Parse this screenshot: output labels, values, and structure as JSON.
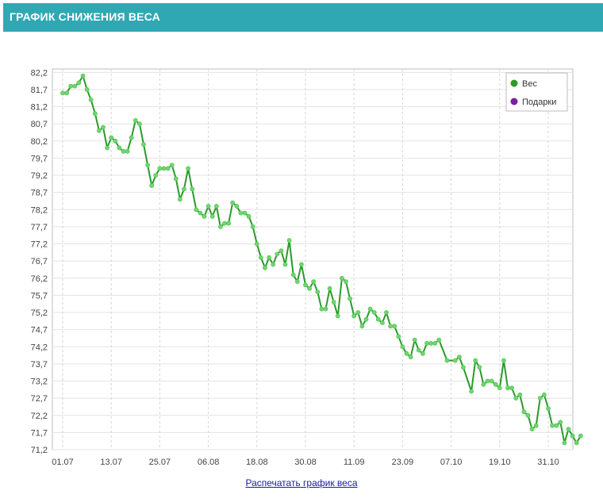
{
  "header": {
    "title": "ГРАФИК СНИЖЕНИЯ ВЕСА"
  },
  "footer": {
    "print_link": "Распечатать график веса"
  },
  "colors": {
    "header_bg": "#2fa8b3",
    "series_line": "#2b9a2b",
    "series_point": "#6fd66f",
    "gifts": "#7b1fa2"
  },
  "chart_data": {
    "type": "line",
    "title": "",
    "xlabel": "",
    "ylabel": "",
    "ylim": [
      71.2,
      82.3
    ],
    "grid": true,
    "legend_placement": "top-right",
    "yticks": [
      "82,2",
      "81,7",
      "81,2",
      "80,7",
      "80,2",
      "79,7",
      "79,2",
      "78,7",
      "78,2",
      "77,7",
      "77,2",
      "76,7",
      "76,2",
      "75,7",
      "75,2",
      "74,7",
      "74,2",
      "73,7",
      "73,2",
      "72,7",
      "72,2",
      "71,7",
      "71,2"
    ],
    "xticks": [
      "01.07",
      "13.07",
      "25.07",
      "06.08",
      "18.08",
      "30.08",
      "11.09",
      "23.09",
      "07.10",
      "19.10",
      "31.10"
    ],
    "legend": [
      {
        "name": "Вес",
        "color": "#2b9a2b"
      },
      {
        "name": "Подарки",
        "color": "#7b1fa2"
      }
    ],
    "series": [
      {
        "name": "Вес",
        "x_start": "01.07",
        "days": [
          0,
          1,
          2,
          3,
          4,
          5,
          6,
          7,
          8,
          9,
          10,
          11,
          12,
          13,
          14,
          15,
          16,
          17,
          18,
          19,
          20,
          21,
          22,
          23,
          24,
          25,
          26,
          27,
          28,
          29,
          30,
          31,
          32,
          33,
          34,
          35,
          36,
          37,
          38,
          39,
          40,
          41,
          42,
          43,
          44,
          45,
          46,
          47,
          48,
          49,
          50,
          51,
          52,
          53,
          54,
          55,
          56,
          57,
          58,
          59,
          60,
          61,
          62,
          63,
          64,
          65,
          66,
          67,
          68,
          69,
          70,
          71,
          72,
          73,
          74,
          75,
          76,
          77,
          78,
          79,
          80,
          81,
          82,
          83,
          84,
          85,
          86,
          87,
          88,
          89,
          90,
          91,
          92,
          93,
          95,
          97,
          98,
          99,
          101,
          102,
          103,
          104,
          105,
          106,
          107,
          108,
          109,
          110,
          111,
          112,
          113,
          114,
          115,
          116,
          117,
          118,
          119,
          120,
          121,
          122,
          123,
          124,
          125,
          126,
          127,
          128
        ],
        "values": [
          81.6,
          81.6,
          81.8,
          81.8,
          81.9,
          82.1,
          81.7,
          81.4,
          81.0,
          80.5,
          80.6,
          80.0,
          80.3,
          80.2,
          80.0,
          79.9,
          79.9,
          80.3,
          80.8,
          80.7,
          80.1,
          79.5,
          78.9,
          79.2,
          79.4,
          79.4,
          79.4,
          79.5,
          79.1,
          78.5,
          78.8,
          79.4,
          78.8,
          78.2,
          78.1,
          78.0,
          78.3,
          78.0,
          78.3,
          77.7,
          77.8,
          77.8,
          78.4,
          78.3,
          78.1,
          78.1,
          78.0,
          77.7,
          77.2,
          76.8,
          76.5,
          76.8,
          76.6,
          76.9,
          77.0,
          76.6,
          77.3,
          76.3,
          76.1,
          76.6,
          76.0,
          75.9,
          76.1,
          75.8,
          75.3,
          75.3,
          75.9,
          75.5,
          75.1,
          76.2,
          76.1,
          75.6,
          75.1,
          75.2,
          74.8,
          75.0,
          75.3,
          75.2,
          75.0,
          74.9,
          75.2,
          74.8,
          74.8,
          74.5,
          74.2,
          74.0,
          73.9,
          74.4,
          74.1,
          74.0,
          74.3,
          74.3,
          74.3,
          74.4,
          73.8,
          73.8,
          73.9,
          73.6,
          72.9,
          73.8,
          73.6,
          73.1,
          73.2,
          73.2,
          73.1,
          73.0,
          73.8,
          73.0,
          73.0,
          72.7,
          72.8,
          72.3,
          72.2,
          71.8,
          71.9,
          72.7,
          72.8,
          72.4,
          71.9,
          71.9,
          72.0,
          71.4,
          71.8,
          71.6,
          71.4,
          71.6
        ]
      }
    ]
  }
}
